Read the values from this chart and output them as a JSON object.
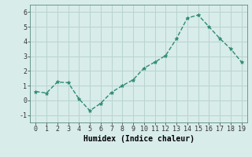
{
  "x": [
    0,
    1,
    2,
    3,
    4,
    5,
    6,
    7,
    8,
    9,
    10,
    11,
    12,
    13,
    14,
    15,
    16,
    17,
    18,
    19
  ],
  "y": [
    0.6,
    0.5,
    1.25,
    1.2,
    0.1,
    -0.7,
    -0.2,
    0.55,
    1.0,
    1.4,
    2.2,
    2.6,
    3.05,
    4.2,
    5.6,
    5.8,
    5.0,
    4.2,
    3.5,
    2.6
  ],
  "line_color": "#2e8b74",
  "marker": "*",
  "marker_size": 3.5,
  "xlabel": "Humidex (Indice chaleur)",
  "xlabel_fontsize": 7,
  "xlim": [
    -0.5,
    19.5
  ],
  "ylim": [
    -1.5,
    6.5
  ],
  "yticks": [
    -1,
    0,
    1,
    2,
    3,
    4,
    5,
    6
  ],
  "xticks": [
    0,
    1,
    2,
    3,
    4,
    5,
    6,
    7,
    8,
    9,
    10,
    11,
    12,
    13,
    14,
    15,
    16,
    17,
    18,
    19
  ],
  "grid_color": "#b8d4d0",
  "bg_color": "#d8ecea",
  "tick_fontsize": 6,
  "line_width": 1.0,
  "spine_color": "#5a8a80"
}
